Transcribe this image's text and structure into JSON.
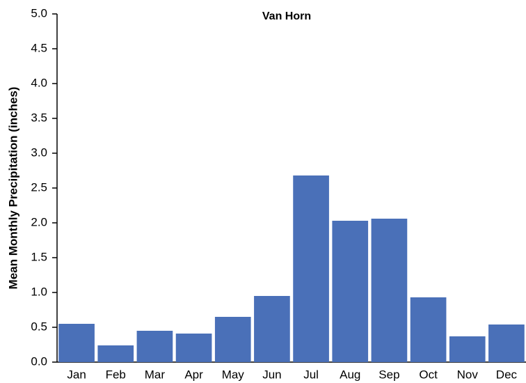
{
  "chart_data": {
    "type": "bar",
    "title": "Van Horn",
    "y_label": "Mean Monthly Precipitation (inches)",
    "categories": [
      "Jan",
      "Feb",
      "Mar",
      "Apr",
      "May",
      "Jun",
      "Jul",
      "Aug",
      "Sep",
      "Oct",
      "Nov",
      "Dec"
    ],
    "values": [
      0.55,
      0.24,
      0.45,
      0.41,
      0.65,
      0.95,
      2.68,
      2.03,
      2.06,
      0.93,
      0.37,
      0.54
    ],
    "color": "#4a70b8",
    "ylim": [
      0,
      5
    ],
    "yticks": [
      {
        "value": 0,
        "label": "0.0"
      },
      0.5,
      {
        "value": 1,
        "label": "1.0"
      },
      1.5,
      {
        "value": 2,
        "label": "2.0"
      },
      2.5,
      {
        "value": 3,
        "label": "3.0"
      },
      3.5,
      {
        "value": 4,
        "label": "4.0"
      },
      4.5,
      {
        "value": 5,
        "label": "5.0"
      }
    ],
    "grid": false
  }
}
